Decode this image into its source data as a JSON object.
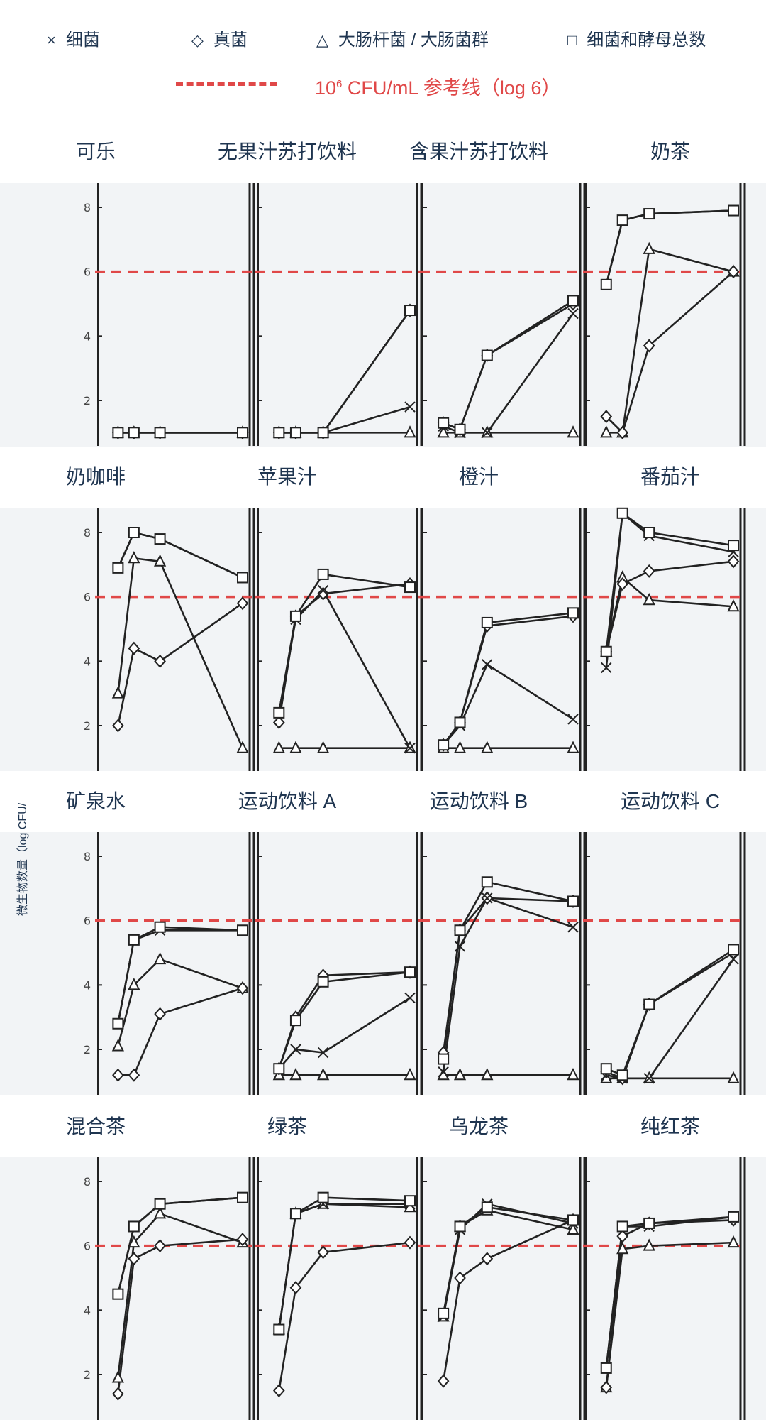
{
  "legend": {
    "bacteria": {
      "symbol": "×",
      "label": "细菌"
    },
    "fungi": {
      "symbol": "◇",
      "label": "真菌"
    },
    "ecoli": {
      "symbol": "△",
      "label": "大肠杆菌 / 大肠菌群"
    },
    "total": {
      "symbol": "□",
      "label": "细菌和酵母总数"
    },
    "reference": {
      "prefix": "10",
      "sup": "6",
      "suffix": " CFU/mL 参考线（log 6）"
    }
  },
  "colors": {
    "line": "#222222",
    "reference": "#e04848",
    "title": "#1f3550"
  },
  "y_axis_label": "微生物数量（log CFU/",
  "chart_data": {
    "type": "line",
    "y_ticks": [
      2,
      4,
      6,
      8
    ],
    "ylim": [
      1,
      8.6
    ],
    "x_sampling_index": [
      0,
      1,
      2,
      4
    ],
    "reference_line": 6,
    "marker_map": {
      "bacteria": "cross",
      "fungi": "diamond",
      "ecoli": "triangle",
      "total": "square"
    },
    "panels": [
      {
        "title": "可乐",
        "series": {
          "bacteria": [
            1,
            1,
            1,
            1
          ],
          "fungi": [
            1,
            1,
            1,
            1
          ],
          "ecoli": [
            1,
            1,
            1,
            1
          ],
          "total": [
            1,
            1,
            1,
            1
          ]
        }
      },
      {
        "title": "无果汁苏打饮料",
        "series": {
          "bacteria": [
            1,
            1,
            1,
            1.8
          ],
          "fungi": [
            1,
            1,
            1,
            4.8
          ],
          "ecoli": [
            1,
            1,
            1,
            1
          ],
          "total": [
            1,
            1,
            1,
            4.8
          ]
        }
      },
      {
        "title": "含果汁苏打饮料",
        "series": {
          "bacteria": [
            1.2,
            1,
            1,
            4.7
          ],
          "fungi": [
            1.3,
            1.1,
            3.4,
            5
          ],
          "ecoli": [
            1,
            1,
            1,
            1
          ],
          "total": [
            1.3,
            1.1,
            3.4,
            5.1
          ]
        }
      },
      {
        "title": "奶茶",
        "series": {
          "bacteria": [
            5.6,
            7.6,
            7.8,
            7.9
          ],
          "fungi": [
            1.5,
            1,
            3.7,
            6
          ],
          "ecoli": [
            1,
            1,
            6.7,
            6
          ],
          "total": [
            5.6,
            7.6,
            7.8,
            7.9
          ]
        }
      },
      {
        "title": "奶咖啡",
        "series": {
          "bacteria": [
            6.9,
            8,
            7.8,
            6.6
          ],
          "fungi": [
            2,
            4.4,
            4,
            5.8
          ],
          "ecoli": [
            3,
            7.2,
            7.1,
            1.3
          ],
          "total": [
            6.9,
            8,
            7.8,
            6.6
          ]
        }
      },
      {
        "title": "苹果汁",
        "series": {
          "bacteria": [
            2.4,
            5.3,
            6.2,
            1.3
          ],
          "fungi": [
            2.1,
            5.4,
            6.1,
            6.4
          ],
          "ecoli": [
            1.3,
            1.3,
            1.3,
            1.3
          ],
          "total": [
            2.4,
            5.4,
            6.7,
            6.3
          ]
        }
      },
      {
        "title": "橙汁",
        "series": {
          "bacteria": [
            1.4,
            2,
            3.9,
            2.2
          ],
          "fungi": [
            1.4,
            2.1,
            5.1,
            5.4
          ],
          "ecoli": [
            1.3,
            1.3,
            1.3,
            1.3
          ],
          "total": [
            1.4,
            2.1,
            5.2,
            5.5
          ]
        }
      },
      {
        "title": "番茄汁",
        "series": {
          "bacteria": [
            3.8,
            8.6,
            7.9,
            7.4
          ],
          "fungi": [
            4.3,
            6.4,
            6.8,
            7.1
          ],
          "ecoli": [
            4.3,
            6.6,
            5.9,
            5.7
          ],
          "total": [
            4.3,
            8.6,
            8,
            7.6
          ]
        }
      },
      {
        "title": "矿泉水",
        "series": {
          "bacteria": [
            2.8,
            5.4,
            5.7,
            5.7
          ],
          "fungi": [
            1.2,
            1.2,
            3.1,
            3.9
          ],
          "ecoli": [
            2.1,
            4,
            4.8,
            3.9
          ],
          "total": [
            2.8,
            5.4,
            5.8,
            5.7
          ]
        }
      },
      {
        "title": "运动饮料 A",
        "series": {
          "bacteria": [
            1.4,
            2,
            1.9,
            3.6
          ],
          "fungi": [
            1.4,
            3,
            4.3,
            4.4
          ],
          "ecoli": [
            1.2,
            1.2,
            1.2,
            1.2
          ],
          "total": [
            1.4,
            2.9,
            4.1,
            4.4
          ]
        }
      },
      {
        "title": "运动饮料 B",
        "series": {
          "bacteria": [
            1.3,
            5.2,
            6.7,
            5.8
          ],
          "fungi": [
            1.9,
            5.7,
            6.7,
            6.6
          ],
          "ecoli": [
            1.2,
            1.2,
            1.2,
            1.2
          ],
          "total": [
            1.7,
            5.7,
            7.2,
            6.6
          ]
        }
      },
      {
        "title": "运动饮料 C",
        "series": {
          "bacteria": [
            1.2,
            1.1,
            1.1,
            4.8
          ],
          "fungi": [
            1.3,
            1.1,
            3.4,
            5
          ],
          "ecoli": [
            1.1,
            1.1,
            1.1,
            1.1
          ],
          "total": [
            1.4,
            1.2,
            3.4,
            5.1
          ]
        }
      },
      {
        "title": "混合茶",
        "series": {
          "bacteria": [
            4.5,
            6.6,
            7.3,
            7.5
          ],
          "fungi": [
            1.4,
            5.6,
            6,
            6.2
          ],
          "ecoli": [
            1.9,
            6.1,
            7,
            6.1
          ],
          "total": [
            4.5,
            6.6,
            7.3,
            7.5
          ]
        }
      },
      {
        "title": "绿茶",
        "series": {
          "bacteria": [
            3.4,
            7,
            7.3,
            7.3
          ],
          "fungi": [
            1.5,
            4.7,
            5.8,
            6.1
          ],
          "ecoli": [
            3.4,
            7,
            7.3,
            7.2
          ],
          "total": [
            3.4,
            7,
            7.5,
            7.4
          ]
        }
      },
      {
        "title": "乌龙茶",
        "series": {
          "bacteria": [
            3.8,
            6.5,
            7.3,
            6.7
          ],
          "fungi": [
            1.8,
            5,
            5.6,
            6.8
          ],
          "ecoli": [
            3.8,
            6.6,
            7.1,
            6.5
          ],
          "total": [
            3.9,
            6.6,
            7.2,
            6.8
          ]
        }
      },
      {
        "title": "纯红茶",
        "series": {
          "bacteria": [
            2.2,
            6.6,
            6.6,
            6.9
          ],
          "fungi": [
            1.6,
            6.3,
            6.7,
            6.8
          ],
          "ecoli": [
            1.6,
            5.9,
            6,
            6.1
          ],
          "total": [
            2.2,
            6.6,
            6.7,
            6.9
          ]
        }
      }
    ]
  }
}
